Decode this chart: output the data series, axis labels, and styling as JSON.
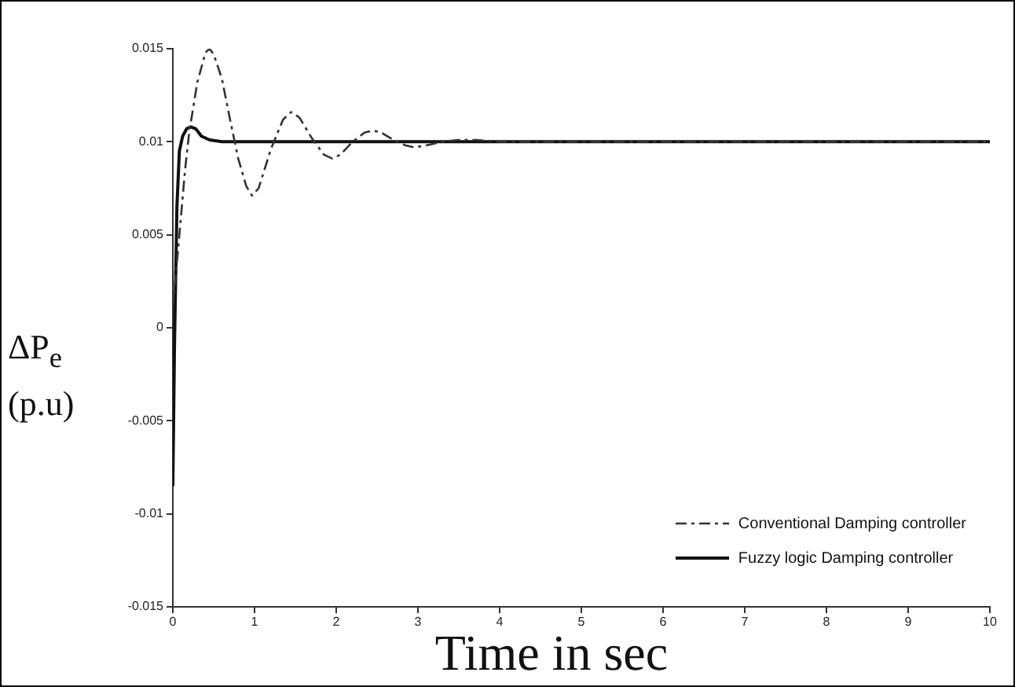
{
  "chart_data": {
    "type": "line",
    "xlabel": "Time in sec",
    "ylabel": "ΔP$_{e}$ (p.u)",
    "xlim": [
      0,
      10
    ],
    "xticks": [
      0,
      1,
      2,
      3,
      4,
      5,
      6,
      7,
      8,
      9,
      10
    ],
    "ylim": [
      -0.015,
      0.015
    ],
    "yticks": [
      -0.015,
      -0.01,
      -0.005,
      0,
      0.005,
      0.01,
      0.015
    ],
    "grid": false,
    "legend": "bottom right",
    "marker": "none",
    "series": [
      {
        "name": "Conventional Damping controller",
        "color": "#333333",
        "line_style": "dashed",
        "x": [
          0,
          0.05,
          0.1,
          0.15,
          0.2,
          0.3,
          0.4,
          0.45,
          0.5,
          0.6,
          0.7,
          0.8,
          0.9,
          0.97,
          1.05,
          1.2,
          1.35,
          1.45,
          1.55,
          1.7,
          1.85,
          1.95,
          2.05,
          2.2,
          2.35,
          2.45,
          2.55,
          2.7,
          2.85,
          2.95,
          3.1,
          3.3,
          3.5,
          3.7,
          4,
          4.5,
          5,
          6,
          7,
          8,
          9,
          10
        ],
        "values": [
          0.001,
          0.0035,
          0.006,
          0.0085,
          0.0105,
          0.0132,
          0.0148,
          0.015,
          0.0147,
          0.0134,
          0.0112,
          0.0091,
          0.0076,
          0.0071,
          0.0075,
          0.0096,
          0.0112,
          0.0116,
          0.0113,
          0.0102,
          0.0093,
          0.0091,
          0.0093,
          0.01,
          0.0105,
          0.0106,
          0.0105,
          0.0101,
          0.0098,
          0.0097,
          0.0098,
          0.01,
          0.0101,
          0.0101,
          0.01,
          0.01,
          0.01,
          0.01,
          0.01,
          0.01,
          0.01,
          0.01
        ]
      },
      {
        "name": "Fuzzy logic Damping controller",
        "color": "#111111",
        "line_style": "solid",
        "x": [
          0,
          0.02,
          0.05,
          0.08,
          0.12,
          0.17,
          0.22,
          0.28,
          0.35,
          0.45,
          0.6,
          1,
          2,
          4,
          6,
          8,
          10
        ],
        "values": [
          -0.0085,
          -0.001,
          0.0065,
          0.0095,
          0.0103,
          0.0107,
          0.0108,
          0.0107,
          0.0103,
          0.0101,
          0.01,
          0.01,
          0.01,
          0.01,
          0.01,
          0.01,
          0.01
        ]
      }
    ]
  }
}
